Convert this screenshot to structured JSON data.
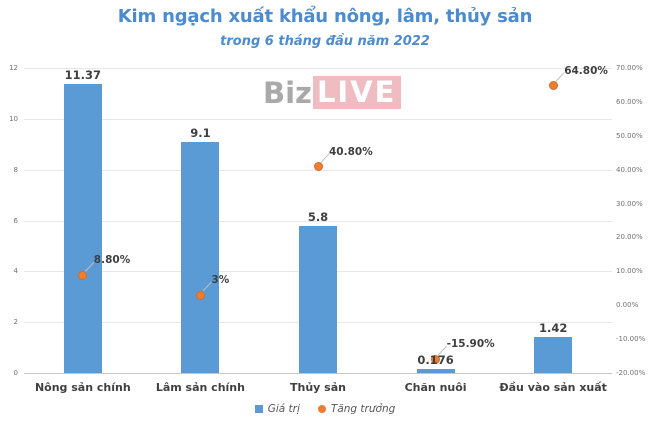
{
  "colors": {
    "title": "#4b8bce",
    "bar": "#5b9bd5",
    "point": "#ed7d31",
    "gridline": "#e8e8e8",
    "axis_line": "#c6c6c6",
    "leader_line": "#bfbfbf"
  },
  "watermark": {
    "biz": "Biz",
    "live": "LIVE"
  },
  "legend": {
    "items": [
      {
        "label": "Giá trị",
        "shape": "square",
        "color": "#5b9bd5"
      },
      {
        "label": "Tăng trưởng",
        "shape": "circle",
        "color": "#ed7d31"
      }
    ]
  },
  "chart_data": {
    "type": "bar",
    "subtype": "combo-bar-with-scatter-points",
    "title": "Kim ngạch xuất khẩu nông, lâm, thủy sản",
    "subtitle": "trong 6 tháng đầu năm 2022",
    "categories": [
      "Nông sản chính",
      "Lâm sản chính",
      "Thủy sản",
      "Chăn nuôi",
      "Đầu vào sản xuất"
    ],
    "series": [
      {
        "name": "Giá trị",
        "type": "bar",
        "axis": "left",
        "color": "#5b9bd5",
        "values": [
          11.37,
          9.1,
          5.8,
          0.176,
          1.42
        ],
        "labels": [
          "11.37",
          "9.1",
          "5.8",
          "0.176",
          "1.42"
        ]
      },
      {
        "name": "Tăng trưởng",
        "type": "point",
        "axis": "right",
        "color": "#ed7d31",
        "values": [
          8.8,
          3,
          40.8,
          -15.9,
          64.8
        ],
        "labels": [
          "8.80%",
          "3%",
          "40.80%",
          "-15.90%",
          "64.80%"
        ]
      }
    ],
    "left_axis": {
      "min": 0,
      "max": 12,
      "step": 2,
      "tick_labels": [
        "0",
        "2",
        "4",
        "6",
        "8",
        "10",
        "12"
      ]
    },
    "right_axis": {
      "min": -20,
      "max": 70,
      "step": 10,
      "tick_labels": [
        "-20.00%",
        "-10.00%",
        "0.00%",
        "10.00%",
        "20.00%",
        "30.00%",
        "40.00%",
        "50.00%",
        "60.00%",
        "70.00%"
      ]
    },
    "grid": true,
    "legend_position": "bottom"
  }
}
